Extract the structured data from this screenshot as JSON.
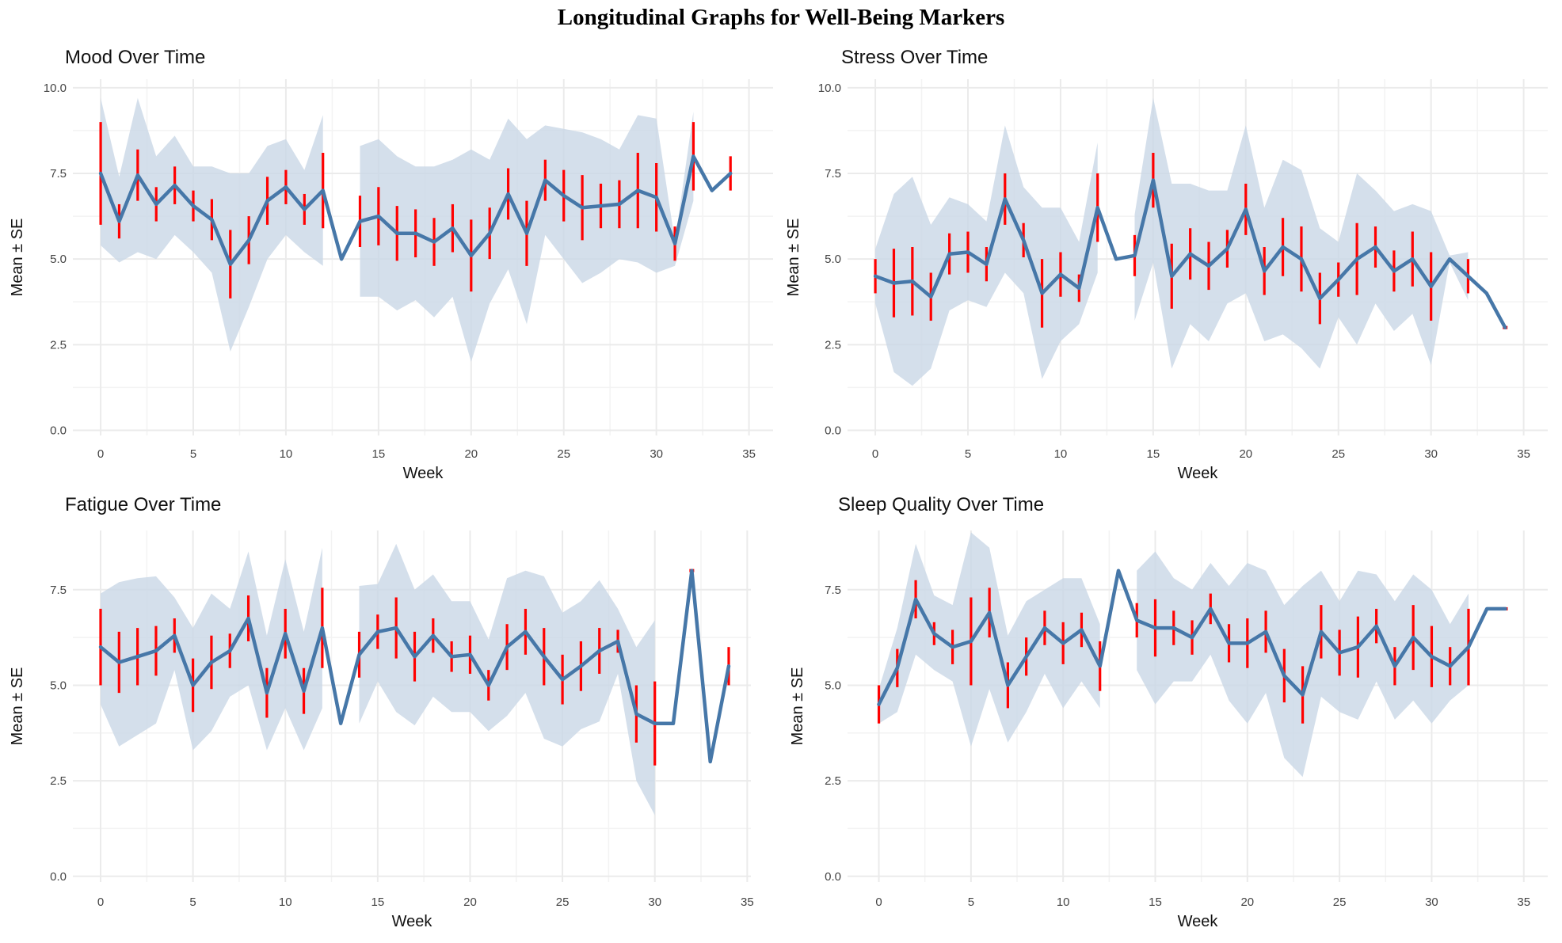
{
  "title": "Longitudinal Graphs for Well-Being Markers",
  "colors": {
    "line": "#4677a8",
    "band": "#c9d7e6",
    "error": "#ff0000",
    "grid": "#ebebeb"
  },
  "chart_data": [
    {
      "type": "line",
      "title": "Mood Over Time",
      "xlabel": "Week",
      "ylabel": "Mean ± SE",
      "xlim": [
        -1.5,
        36.3
      ],
      "ylim": [
        -0.15,
        10.25
      ],
      "xticks": [
        0,
        5,
        10,
        15,
        20,
        25,
        30,
        35
      ],
      "yticks": [
        0,
        2.5,
        5,
        7.5,
        10
      ],
      "ytick_labels": [
        "0.0",
        "2.5",
        "5.0",
        "7.5",
        "10.0"
      ],
      "x": [
        0,
        1,
        2,
        3,
        4,
        5,
        6,
        7,
        8,
        9,
        10,
        11,
        12,
        13,
        14,
        15,
        16,
        17,
        18,
        19,
        20,
        21,
        22,
        23,
        24,
        25,
        26,
        27,
        28,
        29,
        30,
        31,
        32,
        33,
        34
      ],
      "mean": [
        7.5,
        6.1,
        7.45,
        6.6,
        7.15,
        6.55,
        6.15,
        4.85,
        5.55,
        6.7,
        7.1,
        6.45,
        7.0,
        5.0,
        6.1,
        6.25,
        5.75,
        5.75,
        5.5,
        5.9,
        5.1,
        5.75,
        6.9,
        5.75,
        7.3,
        6.85,
        6.5,
        6.55,
        6.6,
        7.0,
        6.8,
        5.45,
        8.0,
        7.0,
        7.5
      ],
      "se": [
        1.5,
        0.5,
        0.75,
        0.5,
        0.55,
        0.45,
        0.6,
        1.0,
        0.7,
        0.7,
        0.5,
        0.45,
        1.1,
        null,
        0.75,
        0.85,
        0.8,
        0.7,
        0.7,
        0.7,
        1.05,
        0.75,
        0.75,
        0.95,
        0.6,
        0.75,
        0.95,
        0.65,
        0.7,
        1.1,
        1.0,
        0.5,
        1.0,
        null,
        0.5
      ],
      "band_upper": [
        9.7,
        7.4,
        9.7,
        8.0,
        8.6,
        7.7,
        7.7,
        7.5,
        7.5,
        8.3,
        8.5,
        7.6,
        9.2,
        null,
        8.3,
        8.5,
        8.0,
        7.7,
        7.7,
        7.9,
        8.2,
        7.9,
        9.1,
        8.5,
        8.9,
        8.8,
        8.7,
        8.5,
        8.2,
        9.2,
        9.1,
        5.5,
        9.3,
        null,
        null
      ],
      "band_lower": [
        5.4,
        4.9,
        5.2,
        5.0,
        5.7,
        5.2,
        4.6,
        2.3,
        3.6,
        5.0,
        5.7,
        5.2,
        4.8,
        null,
        3.9,
        3.9,
        3.5,
        3.8,
        3.3,
        3.9,
        2.0,
        3.7,
        4.7,
        3.1,
        5.7,
        5.0,
        4.3,
        4.6,
        5.0,
        4.9,
        4.6,
        4.8,
        6.7,
        null,
        null
      ]
    },
    {
      "type": "line",
      "title": "Stress Over Time",
      "xlabel": "Week",
      "ylabel": "Mean ± SE",
      "xlim": [
        -1.5,
        36.3
      ],
      "ylim": [
        -0.15,
        10.25
      ],
      "xticks": [
        0,
        5,
        10,
        15,
        20,
        25,
        30,
        35
      ],
      "yticks": [
        0,
        2.5,
        5,
        7.5,
        10
      ],
      "ytick_labels": [
        "0.0",
        "2.5",
        "5.0",
        "7.5",
        "10.0"
      ],
      "x": [
        0,
        1,
        2,
        3,
        4,
        5,
        6,
        7,
        8,
        9,
        10,
        11,
        12,
        13,
        14,
        15,
        16,
        17,
        18,
        19,
        20,
        21,
        22,
        23,
        24,
        25,
        26,
        27,
        28,
        29,
        30,
        31,
        32,
        33,
        34
      ],
      "mean": [
        4.5,
        4.3,
        4.35,
        3.9,
        5.15,
        5.2,
        4.85,
        6.75,
        5.55,
        4.0,
        4.55,
        4.15,
        6.5,
        5.0,
        5.1,
        7.3,
        4.5,
        5.15,
        4.8,
        5.3,
        6.45,
        4.65,
        5.35,
        5.0,
        3.85,
        4.4,
        5.0,
        5.35,
        4.65,
        5.0,
        4.2,
        5.0,
        4.5,
        4.0,
        3.0
      ],
      "se": [
        0.5,
        1.0,
        1.0,
        0.7,
        0.6,
        0.6,
        0.5,
        0.75,
        0.5,
        1.0,
        0.65,
        0.4,
        1.0,
        null,
        0.6,
        0.8,
        0.95,
        0.75,
        0.7,
        0.55,
        0.75,
        0.7,
        0.85,
        0.95,
        0.75,
        0.5,
        1.05,
        0.6,
        0.6,
        0.8,
        1.0,
        null,
        0.5,
        null,
        0.0
      ],
      "band_upper": [
        5.3,
        6.9,
        7.4,
        6.0,
        6.8,
        6.6,
        6.1,
        8.9,
        7.1,
        6.5,
        6.5,
        5.5,
        8.4,
        null,
        6.3,
        9.7,
        7.2,
        7.2,
        7.0,
        7.0,
        8.9,
        6.5,
        7.9,
        7.6,
        5.9,
        5.5,
        7.5,
        7.0,
        6.4,
        6.6,
        6.4,
        5.1,
        5.2,
        null,
        null
      ],
      "band_lower": [
        3.7,
        1.7,
        1.3,
        1.8,
        3.5,
        3.8,
        3.6,
        4.6,
        4.0,
        1.5,
        2.6,
        3.1,
        4.6,
        null,
        3.2,
        4.9,
        1.8,
        3.1,
        2.6,
        3.7,
        4.0,
        2.6,
        2.8,
        2.4,
        1.8,
        3.3,
        2.5,
        3.7,
        2.9,
        3.4,
        1.9,
        4.9,
        3.8,
        null,
        null
      ]
    },
    {
      "type": "line",
      "title": "Fatigue Over Time",
      "xlabel": "Week",
      "ylabel": "Mean ± SE",
      "xlim": [
        -1.5,
        35.2
      ],
      "ylim": [
        -0.15,
        9.05
      ],
      "xticks": [
        0,
        5,
        10,
        15,
        20,
        25,
        30,
        35
      ],
      "yticks": [
        0,
        2.5,
        5,
        7.5
      ],
      "ytick_labels": [
        "0.0",
        "2.5",
        "5.0",
        "7.5"
      ],
      "x": [
        0,
        1,
        2,
        3,
        4,
        5,
        6,
        7,
        8,
        9,
        10,
        11,
        12,
        13,
        14,
        15,
        16,
        17,
        18,
        19,
        20,
        21,
        22,
        23,
        24,
        25,
        26,
        27,
        28,
        29,
        30,
        31,
        32,
        33,
        34
      ],
      "mean": [
        6.0,
        5.6,
        5.75,
        5.9,
        6.3,
        5.0,
        5.6,
        5.9,
        6.75,
        4.8,
        6.35,
        4.85,
        6.5,
        4.0,
        5.8,
        6.4,
        6.5,
        5.75,
        6.3,
        5.75,
        5.8,
        5.0,
        6.0,
        6.4,
        5.75,
        5.15,
        5.5,
        5.9,
        6.15,
        4.25,
        4.0,
        4.0,
        8.0,
        3.0,
        5.5
      ],
      "se": [
        1.0,
        0.8,
        0.75,
        0.65,
        0.45,
        0.7,
        0.7,
        0.45,
        0.6,
        0.65,
        0.65,
        0.6,
        1.05,
        null,
        0.6,
        0.45,
        0.8,
        0.65,
        0.45,
        0.4,
        0.5,
        0.4,
        0.6,
        0.6,
        0.75,
        0.65,
        0.65,
        0.6,
        0.3,
        0.75,
        1.1,
        null,
        0.0,
        null,
        0.5
      ],
      "band_upper": [
        7.4,
        7.7,
        7.8,
        7.85,
        7.3,
        6.5,
        7.4,
        7.0,
        8.5,
        6.3,
        8.3,
        6.4,
        8.6,
        null,
        7.6,
        7.65,
        8.7,
        7.5,
        7.9,
        7.2,
        7.2,
        6.2,
        7.8,
        8.0,
        7.85,
        6.9,
        7.2,
        7.75,
        7.0,
        6.0,
        6.7,
        null,
        null,
        null,
        null
      ],
      "band_lower": [
        4.5,
        3.4,
        3.7,
        4.0,
        5.4,
        3.3,
        3.8,
        4.7,
        5.0,
        3.3,
        4.4,
        3.3,
        4.4,
        null,
        4.0,
        5.1,
        4.3,
        3.95,
        4.7,
        4.3,
        4.3,
        3.8,
        4.2,
        4.8,
        3.6,
        3.4,
        3.85,
        4.05,
        5.3,
        2.5,
        1.6,
        null,
        null,
        null,
        null
      ]
    },
    {
      "type": "line",
      "title": "Sleep Quality Over Time",
      "xlabel": "Week",
      "ylabel": "Mean ± SE",
      "xlim": [
        -1.7,
        36.3
      ],
      "ylim": [
        -0.15,
        9.05
      ],
      "xticks": [
        0,
        5,
        10,
        15,
        20,
        25,
        30,
        35
      ],
      "yticks": [
        0,
        2.5,
        5,
        7.5
      ],
      "ytick_labels": [
        "0.0",
        "2.5",
        "5.0",
        "7.5"
      ],
      "x": [
        0,
        1,
        2,
        3,
        4,
        5,
        6,
        7,
        8,
        9,
        10,
        11,
        12,
        13,
        14,
        15,
        16,
        17,
        18,
        19,
        20,
        21,
        22,
        23,
        24,
        25,
        26,
        27,
        28,
        29,
        30,
        31,
        32,
        33,
        34
      ],
      "mean": [
        4.5,
        5.45,
        7.25,
        6.35,
        6.0,
        6.15,
        6.9,
        5.0,
        5.75,
        6.5,
        6.1,
        6.45,
        5.5,
        8.0,
        6.7,
        6.5,
        6.5,
        6.25,
        7.0,
        6.1,
        6.1,
        6.4,
        5.25,
        4.75,
        6.4,
        5.85,
        6.0,
        6.55,
        5.5,
        6.25,
        5.75,
        5.5,
        6.0,
        7.0,
        7.0
      ],
      "se": [
        0.5,
        0.5,
        0.5,
        0.3,
        0.45,
        1.15,
        0.65,
        0.6,
        0.5,
        0.45,
        0.55,
        0.45,
        0.65,
        null,
        0.45,
        0.75,
        0.45,
        0.45,
        0.4,
        0.5,
        0.65,
        0.55,
        0.7,
        0.75,
        0.7,
        0.6,
        0.8,
        0.45,
        0.5,
        0.85,
        0.8,
        0.5,
        1.0,
        null,
        0.0
      ],
      "band_upper": [
        4.9,
        6.5,
        8.7,
        7.35,
        7.1,
        9.0,
        8.6,
        6.3,
        7.2,
        7.5,
        7.8,
        7.8,
        6.6,
        null,
        8.0,
        8.5,
        7.8,
        7.5,
        8.2,
        7.6,
        8.2,
        8.0,
        7.1,
        7.6,
        8.0,
        7.2,
        8.0,
        7.9,
        7.2,
        7.9,
        7.5,
        6.6,
        7.4,
        null,
        null
      ],
      "band_lower": [
        4.0,
        4.3,
        5.8,
        5.4,
        5.1,
        3.4,
        4.9,
        3.5,
        4.3,
        5.3,
        4.4,
        5.1,
        4.4,
        null,
        5.4,
        4.5,
        5.1,
        5.1,
        5.8,
        4.6,
        4.0,
        4.8,
        3.1,
        2.6,
        4.7,
        4.3,
        4.1,
        5.1,
        4.1,
        4.6,
        4.0,
        4.6,
        5.0,
        null,
        null
      ]
    }
  ]
}
